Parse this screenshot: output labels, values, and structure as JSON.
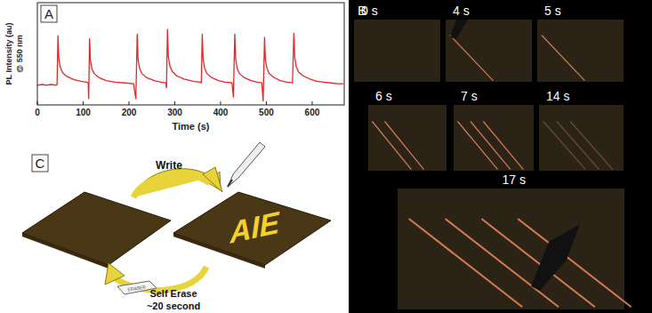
{
  "chart_data": {
    "type": "line",
    "xlabel": "Time (s)",
    "ylabel": [
      "PL Intensity (au)",
      "@ 550 nm"
    ],
    "x": [
      0,
      10,
      20,
      30,
      40,
      43,
      45,
      47,
      50,
      55,
      65,
      80,
      95,
      108,
      111,
      112,
      114,
      116,
      119,
      124,
      134,
      150,
      170,
      190,
      210,
      215,
      218,
      220,
      223,
      228,
      238,
      255,
      270,
      280,
      282,
      284,
      286,
      289,
      294,
      304,
      320,
      340,
      355,
      358,
      360,
      362,
      365,
      370,
      380,
      395,
      410,
      425,
      428,
      431,
      433,
      436,
      441,
      451,
      466,
      480,
      490,
      493,
      496,
      498,
      501,
      506,
      516,
      530,
      545,
      557,
      560,
      562,
      565,
      570,
      580,
      595,
      610,
      625,
      640,
      655,
      668
    ],
    "series": [
      {
        "color": "#e8262a",
        "values": [
          25,
          26,
          25,
          26,
          25,
          26,
          88,
          58,
          48,
          41,
          36,
          32,
          30,
          29,
          28,
          8,
          84,
          56,
          46,
          40,
          35,
          31,
          29,
          28,
          27,
          8,
          90,
          57,
          47,
          40,
          35,
          31,
          29,
          28,
          22,
          96,
          62,
          50,
          43,
          37,
          33,
          30,
          29,
          28,
          90,
          58,
          47,
          40,
          35,
          31,
          29,
          28,
          10,
          90,
          58,
          47,
          40,
          35,
          31,
          29,
          28,
          5,
          86,
          57,
          47,
          40,
          35,
          31,
          29,
          28,
          91,
          60,
          49,
          42,
          37,
          33,
          30,
          29,
          28,
          27,
          27
        ]
      }
    ],
    "xlim": [
      0,
      670
    ],
    "xticks": [
      0,
      100,
      200,
      300,
      400,
      500,
      600
    ],
    "ylim": [
      0,
      130
    ],
    "tick_labels": "x"
  },
  "panel_labels": [
    "A",
    "B",
    "C"
  ],
  "photo_frames": [
    "0 s",
    "4 s",
    "5 s",
    "6 s",
    "7 s",
    "14 s",
    "17 s"
  ],
  "diagram": {
    "write": "Write",
    "text": "AIE",
    "eraser": "ERASER",
    "erase_label": "Self Erase",
    "erase_time": "~20 second"
  }
}
